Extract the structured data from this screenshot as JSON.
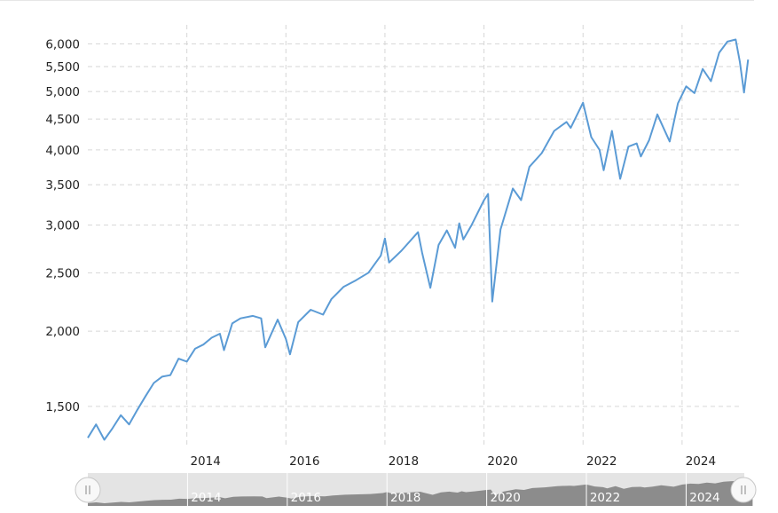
{
  "chart_data": {
    "type": "line",
    "title": "",
    "xlabel": "",
    "ylabel": "",
    "y_scale": "log",
    "ylim": [
      1300,
      6300
    ],
    "xlim": [
      "2012-01",
      "2025-03"
    ],
    "grid": true,
    "legend": "none",
    "line_color": "#5b9bd5",
    "y_ticks": [
      {
        "value": 1500,
        "label": "1,500"
      },
      {
        "value": 2000,
        "label": "2,000"
      },
      {
        "value": 2500,
        "label": "2,500"
      },
      {
        "value": 3000,
        "label": "3,000"
      },
      {
        "value": 3500,
        "label": "3,500"
      },
      {
        "value": 4000,
        "label": "4,000"
      },
      {
        "value": 4500,
        "label": "4,500"
      },
      {
        "value": 5000,
        "label": "5,000"
      },
      {
        "value": 5500,
        "label": "5,500"
      },
      {
        "value": 6000,
        "label": "6,000"
      }
    ],
    "x_ticks": [
      {
        "value": "2014-01",
        "label": "2014"
      },
      {
        "value": "2016-01",
        "label": "2016"
      },
      {
        "value": "2018-01",
        "label": "2018"
      },
      {
        "value": "2020-01",
        "label": "2020"
      },
      {
        "value": "2022-01",
        "label": "2022"
      },
      {
        "value": "2024-01",
        "label": "2024"
      }
    ],
    "series": [
      {
        "points": [
          {
            "x": "2012-01",
            "y": 1330
          },
          {
            "x": "2012-03",
            "y": 1400
          },
          {
            "x": "2012-05",
            "y": 1320
          },
          {
            "x": "2012-07",
            "y": 1380
          },
          {
            "x": "2012-09",
            "y": 1450
          },
          {
            "x": "2012-11",
            "y": 1400
          },
          {
            "x": "2013-01",
            "y": 1480
          },
          {
            "x": "2013-03",
            "y": 1560
          },
          {
            "x": "2013-05",
            "y": 1640
          },
          {
            "x": "2013-07",
            "y": 1680
          },
          {
            "x": "2013-09",
            "y": 1690
          },
          {
            "x": "2013-11",
            "y": 1800
          },
          {
            "x": "2014-01",
            "y": 1780
          },
          {
            "x": "2014-03",
            "y": 1870
          },
          {
            "x": "2014-05",
            "y": 1900
          },
          {
            "x": "2014-07",
            "y": 1950
          },
          {
            "x": "2014-09",
            "y": 1980
          },
          {
            "x": "2014-10",
            "y": 1860
          },
          {
            "x": "2014-12",
            "y": 2060
          },
          {
            "x": "2015-02",
            "y": 2100
          },
          {
            "x": "2015-05",
            "y": 2120
          },
          {
            "x": "2015-07",
            "y": 2100
          },
          {
            "x": "2015-08",
            "y": 1880
          },
          {
            "x": "2015-11",
            "y": 2090
          },
          {
            "x": "2016-01",
            "y": 1940
          },
          {
            "x": "2016-02",
            "y": 1830
          },
          {
            "x": "2016-04",
            "y": 2070
          },
          {
            "x": "2016-07",
            "y": 2170
          },
          {
            "x": "2016-10",
            "y": 2130
          },
          {
            "x": "2016-12",
            "y": 2260
          },
          {
            "x": "2017-03",
            "y": 2370
          },
          {
            "x": "2017-06",
            "y": 2430
          },
          {
            "x": "2017-09",
            "y": 2500
          },
          {
            "x": "2017-12",
            "y": 2670
          },
          {
            "x": "2018-01",
            "y": 2850
          },
          {
            "x": "2018-02",
            "y": 2600
          },
          {
            "x": "2018-05",
            "y": 2720
          },
          {
            "x": "2018-09",
            "y": 2920
          },
          {
            "x": "2018-10",
            "y": 2700
          },
          {
            "x": "2018-12",
            "y": 2360
          },
          {
            "x": "2019-02",
            "y": 2780
          },
          {
            "x": "2019-04",
            "y": 2940
          },
          {
            "x": "2019-06",
            "y": 2750
          },
          {
            "x": "2019-07",
            "y": 3020
          },
          {
            "x": "2019-08",
            "y": 2840
          },
          {
            "x": "2019-10",
            "y": 3000
          },
          {
            "x": "2020-01",
            "y": 3300
          },
          {
            "x": "2020-02",
            "y": 3380
          },
          {
            "x": "2020-03",
            "y": 2240
          },
          {
            "x": "2020-05",
            "y": 2950
          },
          {
            "x": "2020-08",
            "y": 3450
          },
          {
            "x": "2020-10",
            "y": 3300
          },
          {
            "x": "2020-12",
            "y": 3750
          },
          {
            "x": "2021-03",
            "y": 3950
          },
          {
            "x": "2021-06",
            "y": 4300
          },
          {
            "x": "2021-09",
            "y": 4450
          },
          {
            "x": "2021-10",
            "y": 4350
          },
          {
            "x": "2022-01",
            "y": 4790
          },
          {
            "x": "2022-03",
            "y": 4200
          },
          {
            "x": "2022-05",
            "y": 4000
          },
          {
            "x": "2022-06",
            "y": 3700
          },
          {
            "x": "2022-08",
            "y": 4300
          },
          {
            "x": "2022-10",
            "y": 3580
          },
          {
            "x": "2022-12",
            "y": 4050
          },
          {
            "x": "2023-02",
            "y": 4100
          },
          {
            "x": "2023-03",
            "y": 3900
          },
          {
            "x": "2023-05",
            "y": 4150
          },
          {
            "x": "2023-07",
            "y": 4580
          },
          {
            "x": "2023-10",
            "y": 4130
          },
          {
            "x": "2023-12",
            "y": 4780
          },
          {
            "x": "2024-02",
            "y": 5100
          },
          {
            "x": "2024-04",
            "y": 4970
          },
          {
            "x": "2024-06",
            "y": 5450
          },
          {
            "x": "2024-08",
            "y": 5200
          },
          {
            "x": "2024-10",
            "y": 5800
          },
          {
            "x": "2024-12",
            "y": 6050
          },
          {
            "x": "2025-02",
            "y": 6100
          },
          {
            "x": "2025-03",
            "y": 5600
          },
          {
            "x": "2025-04",
            "y": 4980
          },
          {
            "x": "2025-05",
            "y": 5650
          }
        ]
      }
    ],
    "navigator": {
      "x_ticks": [
        "2014",
        "2016",
        "2018",
        "2020",
        "2022",
        "2024"
      ],
      "handle_left_icon": "grip-lines-icon",
      "handle_right_icon": "grip-lines-icon"
    }
  }
}
